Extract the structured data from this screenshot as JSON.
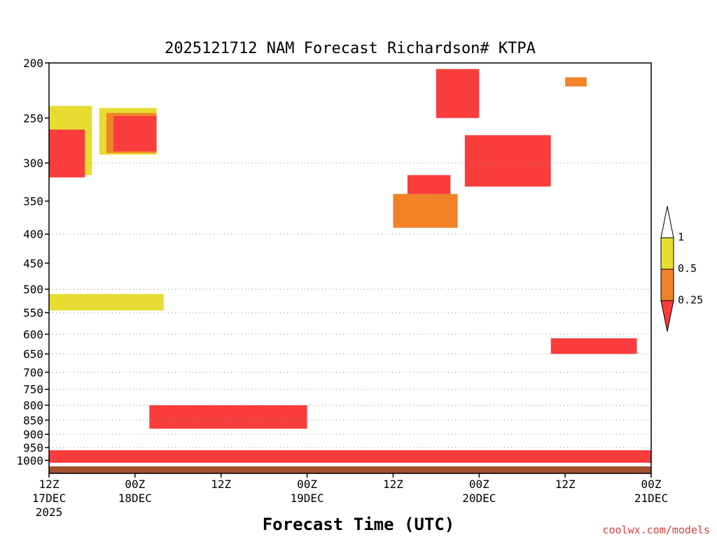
{
  "chart_data": {
    "type": "heatmap",
    "title": "2025121712 NAM Forecast Richardson# KTPA",
    "xlabel": "Forecast Time (UTC)",
    "ylabel": "",
    "y_scale": "log",
    "y_inverted": true,
    "ylim": [
      1025,
      200
    ],
    "xlim": [
      "2025-12-17T12:00Z",
      "2025-12-21T00:00Z"
    ],
    "y_ticks": [
      {
        "value": 200,
        "label": "200"
      },
      {
        "value": 250,
        "label": "250"
      },
      {
        "value": 300,
        "label": "300"
      },
      {
        "value": 350,
        "label": "350"
      },
      {
        "value": 400,
        "label": "400"
      },
      {
        "value": 450,
        "label": "450"
      },
      {
        "value": 500,
        "label": "500"
      },
      {
        "value": 550,
        "label": "550"
      },
      {
        "value": 600,
        "label": "600"
      },
      {
        "value": 650,
        "label": "650"
      },
      {
        "value": 700,
        "label": "700"
      },
      {
        "value": 750,
        "label": "750"
      },
      {
        "value": 800,
        "label": "800"
      },
      {
        "value": 850,
        "label": "850"
      },
      {
        "value": 900,
        "label": "900"
      },
      {
        "value": 950,
        "label": "950"
      },
      {
        "value": 1000,
        "label": "1000"
      }
    ],
    "x_ticks": [
      {
        "time": "2025-12-17T12:00Z",
        "lines": [
          "12Z",
          "17DEC",
          "2025"
        ]
      },
      {
        "time": "2025-12-18T00:00Z",
        "lines": [
          "00Z",
          "18DEC"
        ]
      },
      {
        "time": "2025-12-18T12:00Z",
        "lines": [
          "12Z"
        ]
      },
      {
        "time": "2025-12-19T00:00Z",
        "lines": [
          "00Z",
          "19DEC"
        ]
      },
      {
        "time": "2025-12-19T12:00Z",
        "lines": [
          "12Z"
        ]
      },
      {
        "time": "2025-12-20T00:00Z",
        "lines": [
          "00Z",
          "20DEC"
        ]
      },
      {
        "time": "2025-12-20T12:00Z",
        "lines": [
          "12Z"
        ]
      },
      {
        "time": "2025-12-21T00:00Z",
        "lines": [
          "00Z",
          "21DEC"
        ]
      }
    ],
    "dotted_gridlines_at": [
      300,
      400,
      500,
      550,
      600,
      650,
      700,
      750,
      800,
      850,
      900,
      950
    ],
    "legend": {
      "placement": "right",
      "levels": [
        {
          "label": "1",
          "value": 1,
          "color": "#ffffff"
        },
        {
          "label": "0.5",
          "value": 0.5,
          "color": "#e6dc32"
        },
        {
          "label": "0.25",
          "value": 0.25,
          "color": "#f08228"
        },
        {
          "label": "",
          "value": 0,
          "color": "#fa3c3c"
        }
      ]
    },
    "colors": {
      "lt_0.25": "#fa3c3c",
      "0.25_to_0.5": "#f08228",
      "0.5_to_1": "#e6dc32",
      "gt_1": "#ffffff",
      "ground": "#a0522d"
    },
    "regions": [
      {
        "t0": "2025-12-17T12:00Z",
        "t1": "2025-12-17T18:00Z",
        "p_top": 238,
        "p_bot": 315,
        "category": "0.5_to_1"
      },
      {
        "t0": "2025-12-17T12:00Z",
        "t1": "2025-12-17T17:00Z",
        "p_top": 262,
        "p_bot": 318,
        "category": "lt_0.25"
      },
      {
        "t0": "2025-12-17T19:00Z",
        "t1": "2025-12-18T03:00Z",
        "p_top": 240,
        "p_bot": 290,
        "category": "0.5_to_1"
      },
      {
        "t0": "2025-12-17T20:00Z",
        "t1": "2025-12-18T03:00Z",
        "p_top": 245,
        "p_bot": 288,
        "category": "0.25_to_0.5"
      },
      {
        "t0": "2025-12-17T21:00Z",
        "t1": "2025-12-18T03:00Z",
        "p_top": 248,
        "p_bot": 286,
        "category": "lt_0.25"
      },
      {
        "t0": "2025-12-19T18:00Z",
        "t1": "2025-12-20T00:00Z",
        "p_top": 205,
        "p_bot": 250,
        "category": "lt_0.25"
      },
      {
        "t0": "2025-12-19T14:00Z",
        "t1": "2025-12-19T20:00Z",
        "p_top": 315,
        "p_bot": 360,
        "category": "lt_0.25"
      },
      {
        "t0": "2025-12-19T22:00Z",
        "t1": "2025-12-20T10:00Z",
        "p_top": 268,
        "p_bot": 330,
        "category": "lt_0.25"
      },
      {
        "t0": "2025-12-20T12:00Z",
        "t1": "2025-12-20T15:00Z",
        "p_top": 212,
        "p_bot": 220,
        "category": "0.25_to_0.5"
      },
      {
        "t0": "2025-12-19T12:00Z",
        "t1": "2025-12-19T21:00Z",
        "p_top": 340,
        "p_bot": 390,
        "category": "0.25_to_0.5"
      },
      {
        "t0": "2025-12-17T12:00Z",
        "t1": "2025-12-18T04:00Z",
        "p_top": 510,
        "p_bot": 545,
        "category": "0.5_to_1"
      },
      {
        "t0": "2025-12-20T10:00Z",
        "t1": "2025-12-20T22:00Z",
        "p_top": 610,
        "p_bot": 650,
        "category": "lt_0.25"
      },
      {
        "t0": "2025-12-17T12:00Z",
        "t1": "2025-12-21T00:00Z",
        "p_top": 960,
        "p_bot": 1010,
        "category": "lt_0.25"
      },
      {
        "t0": "2025-12-18T02:00Z",
        "t1": "2025-12-19T00:00Z",
        "p_top": 800,
        "p_bot": 880,
        "category": "lt_0.25"
      }
    ],
    "ground_level_p": 1013
  },
  "credit": {
    "text": "coolwx.com/models",
    "color": "#dc3c3c"
  }
}
